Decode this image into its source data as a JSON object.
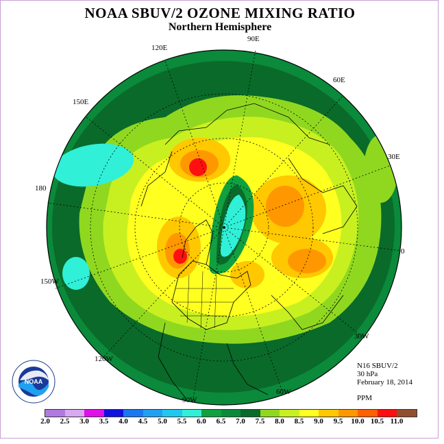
{
  "title": "NOAA SBUV/2 OZONE MIXING RATIO",
  "subtitle": "Northern Hemisphere",
  "longitudes": [
    "90E",
    "60E",
    "30E",
    "0",
    "30W",
    "60W",
    "90W",
    "120W",
    "150W",
    "180",
    "150E",
    "120E"
  ],
  "info": {
    "instrument": "N16 SBUV/2",
    "level": "30 hPa",
    "date": "February 18, 2014",
    "units": "PPM"
  },
  "logo": {
    "text": "NOAA",
    "ring_text": "NATIONAL OCEANIC AND ATMOSPHERIC ADMINISTRATION",
    "ring_text_bottom": "U.S. DEPARTMENT OF COMMERCE"
  },
  "colorbar": {
    "ticks": [
      "2.0",
      "2.5",
      "3.0",
      "3.5",
      "4.0",
      "4.5",
      "5.0",
      "5.5",
      "6.0",
      "6.5",
      "7.0",
      "7.5",
      "8.0",
      "8.5",
      "9.0",
      "9.5",
      "10.0",
      "10.5",
      "11.0"
    ],
    "colors": [
      "#b07ae0",
      "#d8a8f0",
      "#e010e8",
      "#1010e0",
      "#1a78f0",
      "#20a0f0",
      "#20c8f0",
      "#30f0d8",
      "#10a040",
      "#0a8a3a",
      "#0a6a2a",
      "#90d820",
      "#c8f020",
      "#ffff20",
      "#ffc800",
      "#ff9800",
      "#ff6000",
      "#ff1010",
      "#905030"
    ]
  }
}
